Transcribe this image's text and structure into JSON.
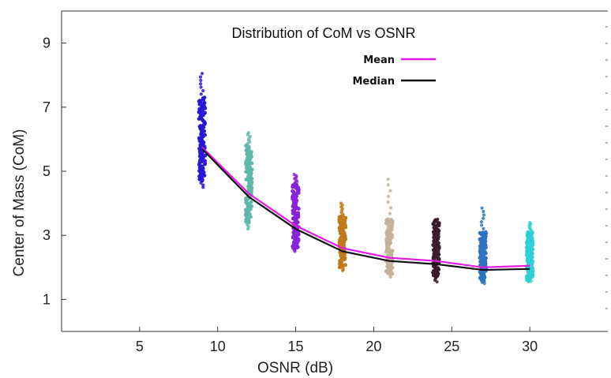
{
  "chart_data": {
    "type": "scatter",
    "title": "Distribution of CoM vs OSNR",
    "xlabel": "OSNR (dB)",
    "ylabel": "Center of Mass (CoM)",
    "xlim": [
      0,
      35
    ],
    "ylim": [
      0,
      10
    ],
    "x_ticks": [
      5,
      10,
      15,
      20,
      25,
      30
    ],
    "y_ticks": [
      1,
      3,
      5,
      7,
      9
    ],
    "grid": false,
    "legend_position": "top-center",
    "x_tick_labels": [
      "5",
      "10",
      "15",
      "20",
      "25",
      "30"
    ],
    "y_tick_labels": [
      "1",
      "3",
      "5",
      "7",
      "9"
    ],
    "scatter_groups": [
      {
        "x": 9,
        "min": 4.5,
        "max": 8.05,
        "core_min": 4.7,
        "core_max": 7.3,
        "color": "#2a17d6"
      },
      {
        "x": 12,
        "min": 3.2,
        "max": 6.2,
        "core_min": 3.4,
        "core_max": 5.8,
        "color": "#5fb8a8"
      },
      {
        "x": 15,
        "min": 2.5,
        "max": 4.9,
        "core_min": 2.6,
        "core_max": 4.6,
        "color": "#8a22d8"
      },
      {
        "x": 18,
        "min": 1.9,
        "max": 4.0,
        "core_min": 2.0,
        "core_max": 3.6,
        "color": "#c07a1a"
      },
      {
        "x": 21,
        "min": 1.7,
        "max": 4.75,
        "core_min": 1.8,
        "core_max": 3.5,
        "color": "#c4b299"
      },
      {
        "x": 24,
        "min": 1.55,
        "max": 3.5,
        "core_min": 1.7,
        "core_max": 3.4,
        "color": "#3a1c2c"
      },
      {
        "x": 27,
        "min": 1.5,
        "max": 3.85,
        "core_min": 1.6,
        "core_max": 3.1,
        "color": "#2f73c0"
      },
      {
        "x": 30,
        "min": 1.55,
        "max": 3.4,
        "core_min": 1.6,
        "core_max": 3.1,
        "color": "#2ed0d8"
      }
    ],
    "series": [
      {
        "name": "Mean",
        "color": "#e21ce2",
        "x": [
          9,
          12,
          15,
          18,
          21,
          24,
          27,
          30
        ],
        "values": [
          5.75,
          4.3,
          3.3,
          2.6,
          2.3,
          2.2,
          2.0,
          2.05
        ]
      },
      {
        "name": "Median",
        "color": "#111111",
        "x": [
          9,
          12,
          15,
          18,
          21,
          24,
          27,
          30
        ],
        "values": [
          5.7,
          4.2,
          3.2,
          2.5,
          2.2,
          2.1,
          1.92,
          1.95
        ]
      }
    ]
  }
}
